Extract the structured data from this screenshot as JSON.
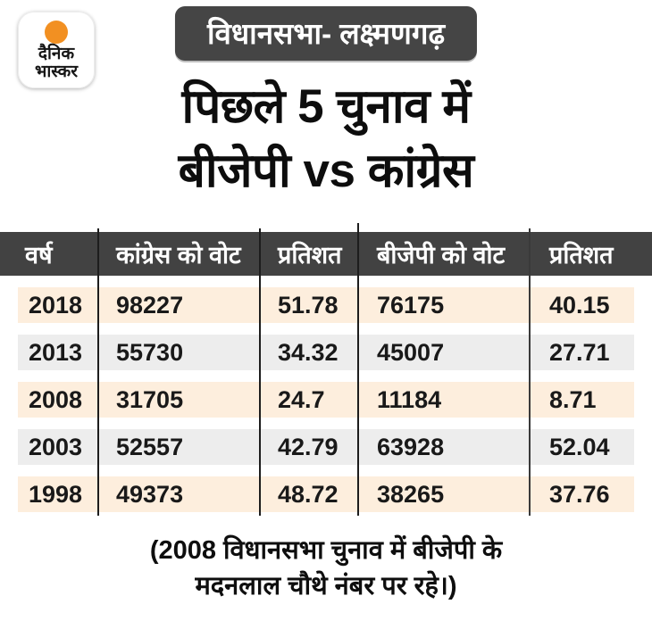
{
  "logo": {
    "line1": "दैनिक",
    "line2": "भास्कर"
  },
  "badge": {
    "label": "विधानसभा- लक्ष्मणगढ़"
  },
  "title": {
    "line1": "पिछले 5 चुनाव में",
    "line2": "बीजेपी vs कांग्रेस"
  },
  "table": {
    "headers": [
      "वर्ष",
      "कांग्रेस को वोट",
      "प्रतिशत",
      "बीजेपी को वोट",
      "प्रतिशत"
    ],
    "rows": [
      [
        "2018",
        "98227",
        "51.78",
        "76175",
        "40.15"
      ],
      [
        "2013",
        "55730",
        "34.32",
        "45007",
        "27.71"
      ],
      [
        "2008",
        "31705",
        "24.7",
        "11184",
        "8.71"
      ],
      [
        "2003",
        "52557",
        "42.79",
        "63928",
        "52.04"
      ],
      [
        "1998",
        "49373",
        "48.72",
        "38265",
        "37.76"
      ]
    ]
  },
  "footnote": {
    "line1": "(2008 विधानसभा चुनाव में बीजेपी के",
    "line2": "मदनलाल चौथे नंबर पर रहे।)"
  },
  "colors": {
    "header_dark": "#424242",
    "badge_dark": "#454545",
    "row_peach": "#fdeedd",
    "row_gray": "#ededed",
    "logo_orange": "#f29022",
    "divider": "#1d1d1d",
    "text": "#0d0d0d",
    "background": "#ffffff"
  },
  "chart_data": {
    "type": "table",
    "title": "पिछले 5 चुनाव में बीजेपी vs कांग्रेस",
    "subtitle": "विधानसभा- लक्ष्मणगढ़",
    "columns": [
      "वर्ष",
      "कांग्रेस को वोट",
      "प्रतिशत",
      "बीजेपी को वोट",
      "प्रतिशत"
    ],
    "rows": [
      [
        2018,
        98227,
        51.78,
        76175,
        40.15
      ],
      [
        2013,
        55730,
        34.32,
        45007,
        27.71
      ],
      [
        2008,
        31705,
        24.7,
        11184,
        8.71
      ],
      [
        2003,
        52557,
        42.79,
        63928,
        52.04
      ],
      [
        1998,
        49373,
        48.72,
        38265,
        37.76
      ]
    ],
    "note": "(2008 विधानसभा चुनाव में बीजेपी के मदनलाल चौथे नंबर पर रहे।)"
  }
}
